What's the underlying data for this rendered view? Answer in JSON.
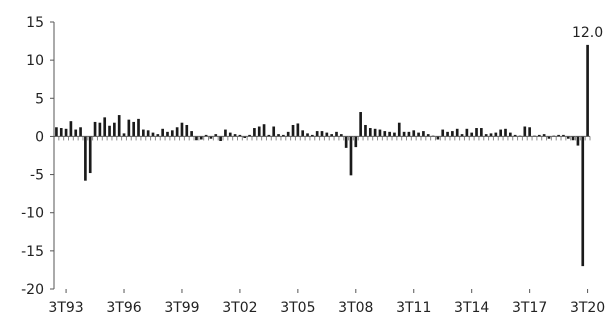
{
  "chart_data": {
    "type": "bar",
    "title": "",
    "xlabel": "",
    "ylabel": "",
    "ylim": [
      -20,
      15
    ],
    "yticks": [
      "15",
      "10",
      "5",
      "0",
      "-5",
      "-10",
      "-15",
      "-20"
    ],
    "x_tick_labels": [
      "3T93",
      "3T96",
      "3T99",
      "3T02",
      "3T05",
      "3T08",
      "3T11",
      "3T14",
      "3T17",
      "3T20"
    ],
    "categories": [
      "1T93",
      "2T93",
      "3T93",
      "4T93",
      "1T94",
      "2T94",
      "3T94",
      "4T94",
      "1T95",
      "2T95",
      "3T95",
      "4T95",
      "1T96",
      "2T96",
      "3T96",
      "4T96",
      "1T97",
      "2T97",
      "3T97",
      "4T97",
      "1T98",
      "2T98",
      "3T98",
      "4T98",
      "1T99",
      "2T99",
      "3T99",
      "4T99",
      "1T00",
      "2T00",
      "3T00",
      "4T00",
      "1T01",
      "2T01",
      "3T01",
      "4T01",
      "1T02",
      "2T02",
      "3T02",
      "4T02",
      "1T03",
      "2T03",
      "3T03",
      "4T03",
      "1T04",
      "2T04",
      "3T04",
      "4T04",
      "1T05",
      "2T05",
      "3T05",
      "4T05",
      "1T06",
      "2T06",
      "3T06",
      "4T06",
      "1T07",
      "2T07",
      "3T07",
      "4T07",
      "1T08",
      "2T08",
      "3T08",
      "4T08",
      "1T09",
      "2T09",
      "3T09",
      "4T09",
      "1T10",
      "2T10",
      "3T10",
      "4T10",
      "1T11",
      "2T11",
      "3T11",
      "4T11",
      "1T12",
      "2T12",
      "3T12",
      "4T12",
      "1T13",
      "2T13",
      "3T13",
      "4T13",
      "1T14",
      "2T14",
      "3T14",
      "4T14",
      "1T15",
      "2T15",
      "3T15",
      "4T15",
      "1T16",
      "2T16",
      "3T16",
      "4T16",
      "1T17",
      "2T17",
      "3T17",
      "4T17",
      "1T18",
      "2T18",
      "3T18",
      "4T18",
      "1T19",
      "2T19",
      "3T19",
      "4T19",
      "1T20",
      "2T20",
      "3T20"
    ],
    "values": [
      1.2,
      1.1,
      1.0,
      2.0,
      0.9,
      1.2,
      -5.8,
      -4.8,
      1.9,
      1.8,
      2.5,
      1.4,
      1.8,
      2.8,
      0.4,
      2.2,
      1.9,
      2.3,
      0.9,
      0.8,
      0.5,
      0.3,
      1.0,
      0.6,
      0.8,
      1.2,
      1.8,
      1.5,
      0.7,
      -0.5,
      -0.4,
      0.2,
      -0.3,
      0.3,
      -0.6,
      0.9,
      0.5,
      0.3,
      0.2,
      -0.2,
      0.2,
      1.1,
      1.3,
      1.6,
      0.2,
      1.3,
      0.3,
      0.2,
      0.6,
      1.5,
      1.7,
      0.8,
      0.4,
      0.2,
      0.7,
      0.7,
      0.5,
      0.3,
      0.6,
      0.3,
      -1.5,
      -5.1,
      -1.4,
      3.2,
      1.5,
      1.1,
      1.0,
      0.9,
      0.7,
      0.6,
      0.5,
      1.8,
      0.6,
      0.6,
      0.8,
      0.5,
      0.7,
      0.3,
      0.1,
      -0.4,
      0.9,
      0.6,
      0.7,
      1.0,
      0.3,
      1.0,
      0.5,
      1.1,
      1.1,
      0.3,
      0.4,
      0.5,
      0.9,
      1.0,
      0.5,
      0.2,
      0.1,
      1.3,
      1.2,
      0.1,
      0.2,
      0.3,
      -0.3,
      0.1,
      0.2,
      0.2,
      -0.3,
      -0.5,
      -1.2,
      -17.0,
      12.0
    ],
    "annotations": [
      {
        "category": "3T20",
        "text": "12.0"
      }
    ],
    "colors": {
      "bar": "#1a1a1a",
      "axis": "#555555",
      "text": "#222222"
    },
    "grid": false,
    "legend": "none"
  }
}
